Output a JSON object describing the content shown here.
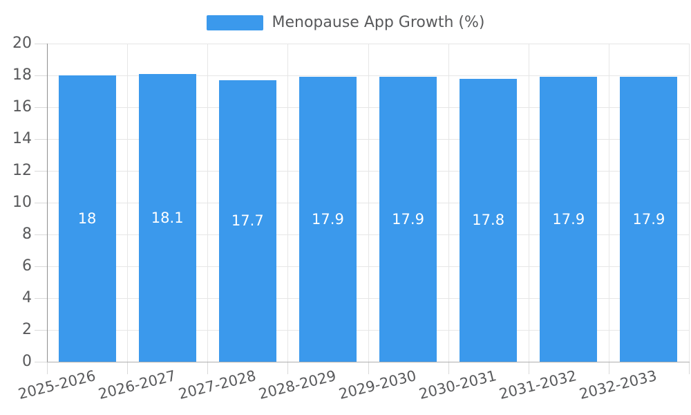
{
  "chart_data": {
    "type": "bar",
    "legend": {
      "label": "Menopause App Growth (%)",
      "position": "top"
    },
    "categories": [
      "2025-2026",
      "2026-2027",
      "2027-2028",
      "2028-2029",
      "2029-2030",
      "2030-2031",
      "2031-2032",
      "2032-2033"
    ],
    "series": [
      {
        "name": "Menopause App Growth (%)",
        "values": [
          18,
          18.1,
          17.7,
          17.9,
          17.9,
          17.8,
          17.9,
          17.9
        ]
      }
    ],
    "bar_value_labels": [
      "18",
      "18.1",
      "17.7",
      "17.9",
      "17.9",
      "17.8",
      "17.9",
      "17.9"
    ],
    "xlabel": "",
    "ylabel": "",
    "ylim": [
      0,
      20
    ],
    "yticks": [
      0,
      2,
      4,
      6,
      8,
      10,
      12,
      14,
      16,
      18,
      20
    ],
    "grid": true,
    "x_label_rotation_deg": -14,
    "colors": {
      "bar": "#3b99ec",
      "bar_label": "#ffffff",
      "axis_text": "#58595b",
      "grid_line": "#e6e6e6",
      "tick_line": "#d9d9d9",
      "y_axis_line": "#8f8f8f",
      "x_axis_line": "#aeaeae",
      "background": "#ffffff"
    }
  }
}
